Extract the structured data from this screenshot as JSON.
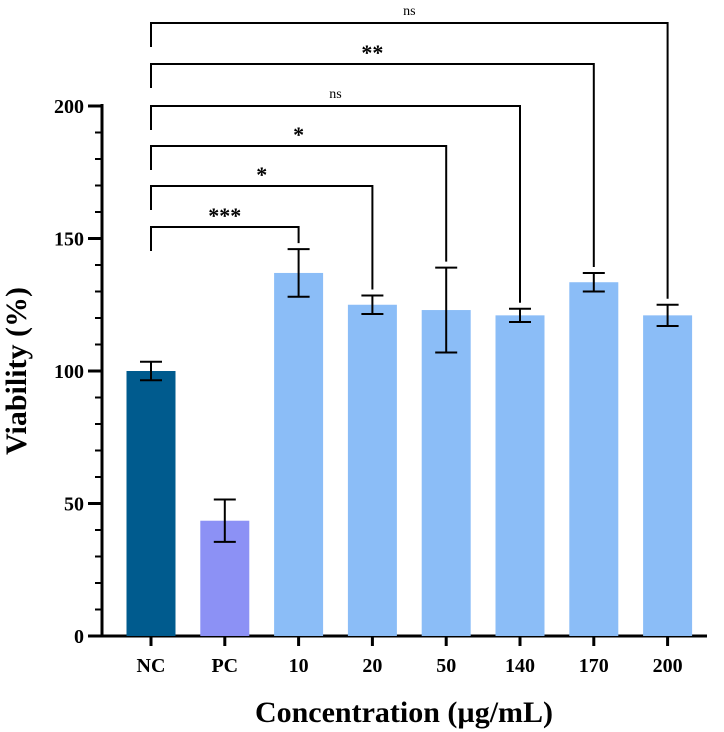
{
  "chart_data": {
    "type": "bar",
    "title": "",
    "xlabel": "Concentration (µg/mL)",
    "ylabel": "Viability (%)",
    "ylim": [
      0,
      200
    ],
    "yticks": [
      0,
      50,
      100,
      150,
      200
    ],
    "yticks_labels": [
      "0",
      "50",
      "100",
      "150",
      "200"
    ],
    "categories": [
      "NC",
      "PC",
      "10",
      "20",
      "50",
      "140",
      "170",
      "200"
    ],
    "values": [
      100,
      43.5,
      137,
      125,
      123,
      121,
      133.5,
      121
    ],
    "errors": [
      3.5,
      8,
      9,
      3.5,
      16,
      2.5,
      3.5,
      4
    ],
    "colors": [
      "#005b8e",
      "#8c91f5",
      "#8bbdf7",
      "#8bbdf7",
      "#8bbdf7",
      "#8bbdf7",
      "#8bbdf7",
      "#8bbdf7"
    ],
    "grid": false,
    "significance": [
      {
        "from": "NC",
        "to": "10",
        "label": "***"
      },
      {
        "from": "NC",
        "to": "20",
        "label": "*"
      },
      {
        "from": "NC",
        "to": "50",
        "label": "*"
      },
      {
        "from": "NC",
        "to": "140",
        "label": "ns"
      },
      {
        "from": "NC",
        "to": "170",
        "label": "**"
      },
      {
        "from": "NC",
        "to": "200",
        "label": "ns"
      }
    ]
  }
}
